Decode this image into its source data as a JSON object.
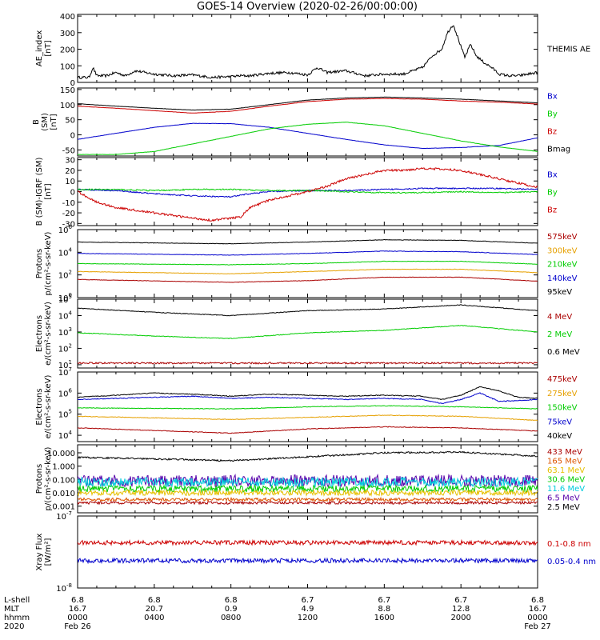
{
  "title": "GOES-14 Overview (2020-02-26/00:00:00)",
  "chart_data": [
    {
      "type": "line",
      "ylabel": [
        "AE_index",
        "[nT]"
      ],
      "yticks": [
        "400",
        "300",
        "200",
        "100",
        "0"
      ],
      "ylim": [
        0,
        410
      ],
      "legend": [
        {
          "name": "THEMIS AE",
          "color": "#000000"
        }
      ],
      "series": [
        {
          "name": "THEMIS AE",
          "color": "#000000",
          "noise": 8,
          "x": [
            0,
            0.6,
            0.8,
            1.0,
            1.5,
            2.0,
            2.5,
            3.0,
            4.0,
            5.0,
            6.0,
            7.0,
            8.0,
            8.5,
            9.0,
            10.0,
            11.0,
            11.7,
            12.0,
            12.5,
            13.0,
            14.0,
            15.0,
            16.0,
            17.0,
            18.0,
            18.5,
            19.0,
            19.3,
            19.6,
            19.9,
            20.2,
            20.5,
            20.8,
            21.2,
            21.6,
            22.0,
            22.5,
            23.0,
            24.0
          ],
          "y": [
            30,
            30,
            90,
            40,
            40,
            60,
            40,
            70,
            50,
            40,
            45,
            30,
            35,
            40,
            40,
            55,
            60,
            50,
            45,
            90,
            60,
            70,
            40,
            50,
            50,
            90,
            160,
            200,
            300,
            350,
            250,
            150,
            230,
            160,
            120,
            90,
            50,
            40,
            40,
            60
          ]
        }
      ]
    },
    {
      "type": "line",
      "ylabel": [
        "B",
        "(SM)",
        "[nT]"
      ],
      "yticks": [
        "150",
        "100",
        "50",
        "0",
        "-50"
      ],
      "ylim": [
        -70,
        155
      ],
      "legend": [
        {
          "name": "Bx",
          "color": "#0000cc"
        },
        {
          "name": "By",
          "color": "#00cc00"
        },
        {
          "name": "Bz",
          "color": "#cc0000"
        },
        {
          "name": "Bmag",
          "color": "#000000"
        }
      ],
      "series": [
        {
          "name": "Bx",
          "color": "#0000cc",
          "noise": 0.4,
          "x": [
            0,
            2,
            4,
            6,
            8,
            10,
            12,
            14,
            16,
            18,
            20,
            22,
            24
          ],
          "y": [
            -15,
            5,
            25,
            38,
            37,
            25,
            5,
            -15,
            -33,
            -45,
            -42,
            -35,
            -10
          ]
        },
        {
          "name": "By",
          "color": "#00cc00",
          "noise": 0.4,
          "x": [
            0,
            2,
            4,
            6,
            8,
            10,
            12,
            14,
            16,
            18,
            20,
            22,
            24
          ],
          "y": [
            -65,
            -65,
            -55,
            -30,
            -5,
            20,
            35,
            42,
            30,
            5,
            -20,
            -40,
            -55
          ]
        },
        {
          "name": "Bz",
          "color": "#cc0000",
          "noise": 0.4,
          "x": [
            0,
            2,
            4,
            6,
            8,
            10,
            12,
            14,
            16,
            18,
            20,
            22,
            24
          ],
          "y": [
            95,
            88,
            80,
            72,
            78,
            95,
            110,
            118,
            120,
            118,
            112,
            108,
            102
          ]
        },
        {
          "name": "Bmag",
          "color": "#000000",
          "noise": 0.4,
          "x": [
            0,
            2,
            4,
            6,
            8,
            10,
            12,
            14,
            16,
            18,
            20,
            22,
            24
          ],
          "y": [
            103,
            95,
            88,
            82,
            85,
            100,
            115,
            122,
            125,
            122,
            118,
            112,
            106
          ]
        }
      ]
    },
    {
      "type": "line",
      "ylabel": [
        "B (SM)-IGRF (SM)",
        "[nT]"
      ],
      "yticks": [
        "30",
        "20",
        "10",
        "0",
        "-10",
        "-20",
        "-30"
      ],
      "ylim": [
        -32,
        32
      ],
      "legend": [
        {
          "name": "Bx",
          "color": "#0000cc"
        },
        {
          "name": "By",
          "color": "#00cc00"
        },
        {
          "name": "Bz",
          "color": "#cc0000"
        }
      ],
      "series": [
        {
          "name": "Bx",
          "color": "#0000cc",
          "noise": 0.6,
          "x": [
            0,
            2,
            4,
            6,
            8,
            9,
            10,
            12,
            14,
            16,
            18,
            20,
            22,
            24
          ],
          "y": [
            2,
            1,
            -2,
            -4,
            -5,
            -2,
            0,
            1,
            1,
            2,
            3,
            3,
            3,
            2
          ]
        },
        {
          "name": "By",
          "color": "#00cc00",
          "noise": 0.6,
          "x": [
            0,
            2,
            4,
            6,
            8,
            10,
            12,
            14,
            16,
            18,
            20,
            22,
            24
          ],
          "y": [
            2,
            2,
            1,
            2,
            2,
            1,
            1,
            0,
            -1,
            -1,
            0,
            -1,
            0
          ]
        },
        {
          "name": "Bz",
          "color": "#cc0000",
          "noise": 1.0,
          "x": [
            0,
            1,
            2,
            4,
            6,
            7,
            8.5,
            9,
            10,
            11,
            12,
            13,
            14,
            16,
            17,
            18,
            20,
            22,
            24
          ],
          "y": [
            0,
            -10,
            -15,
            -20,
            -25,
            -27,
            -24,
            -15,
            -8,
            -4,
            0,
            5,
            12,
            20,
            20,
            22,
            20,
            12,
            4
          ]
        }
      ]
    },
    {
      "type": "line",
      "scale": "log",
      "ylabel": [
        "Protons",
        "p/(cm²-s-sr-keV)"
      ],
      "yticks": [
        "10^6",
        "10^4",
        "10^2",
        "10^0"
      ],
      "ylim": [
        0,
        6
      ],
      "legend": [
        {
          "name": "575keV",
          "color": "#aa0000"
        },
        {
          "name": "300keV",
          "color": "#e6a000"
        },
        {
          "name": "210keV",
          "color": "#00cc00"
        },
        {
          "name": "140keV",
          "color": "#0000cc"
        },
        {
          "name": "95keV",
          "color": "#000000"
        }
      ],
      "series": [
        {
          "name": "95keV",
          "color": "#000000",
          "noise": 0.02,
          "x": [
            0,
            8,
            12,
            16,
            20,
            24
          ],
          "y": [
            4.9,
            4.75,
            4.9,
            5.1,
            5.05,
            4.8
          ]
        },
        {
          "name": "140keV",
          "color": "#0000cc",
          "noise": 0.02,
          "x": [
            0,
            8,
            12,
            16,
            20,
            24
          ],
          "y": [
            3.9,
            3.75,
            3.9,
            4.1,
            4.05,
            3.8
          ]
        },
        {
          "name": "210keV",
          "color": "#00cc00",
          "noise": 0.02,
          "x": [
            0,
            8,
            12,
            16,
            20,
            24
          ],
          "y": [
            3.0,
            2.9,
            3.0,
            3.2,
            3.2,
            2.95
          ]
        },
        {
          "name": "300keV",
          "color": "#e6a000",
          "noise": 0.02,
          "x": [
            0,
            8,
            12,
            16,
            20,
            24
          ],
          "y": [
            2.3,
            2.1,
            2.3,
            2.5,
            2.5,
            2.2
          ]
        },
        {
          "name": "575keV",
          "color": "#aa0000",
          "noise": 0.02,
          "x": [
            0,
            8,
            12,
            16,
            20,
            24
          ],
          "y": [
            1.6,
            1.35,
            1.5,
            1.8,
            1.8,
            1.45
          ]
        }
      ]
    },
    {
      "type": "line",
      "scale": "log",
      "ylabel": [
        "Electrons",
        "e/(cm²-s-sr-keV)"
      ],
      "yticks": [
        "10^5",
        "10^4",
        "10^3",
        "10^2",
        "10^1"
      ],
      "ylim": [
        0.8,
        5
      ],
      "legend": [
        {
          "name": "4 MeV",
          "color": "#aa0000"
        },
        {
          "name": "2 MeV",
          "color": "#00cc00"
        },
        {
          "name": "0.6 MeV",
          "color": "#000000"
        }
      ],
      "series": [
        {
          "name": "0.6 MeV",
          "color": "#000000",
          "noise": 0.02,
          "x": [
            0,
            4,
            8,
            12,
            16,
            20,
            24
          ],
          "y": [
            4.45,
            4.2,
            4.0,
            4.3,
            4.4,
            4.65,
            4.3
          ]
        },
        {
          "name": "2 MeV",
          "color": "#00cc00",
          "noise": 0.02,
          "x": [
            0,
            4,
            8,
            12,
            16,
            20,
            24
          ],
          "y": [
            2.95,
            2.75,
            2.6,
            2.95,
            3.1,
            3.4,
            3.0
          ]
        },
        {
          "name": "4 MeV",
          "color": "#aa0000",
          "noise": 0.05,
          "x": [
            0,
            24
          ],
          "y": [
            1.1,
            1.1
          ]
        }
      ]
    },
    {
      "type": "line",
      "scale": "log",
      "ylabel": [
        "Electrons",
        "e/(cm²-s-sr-keV)"
      ],
      "yticks": [
        "10^7",
        "10^6",
        "10^5",
        "10^4"
      ],
      "ylim": [
        3.7,
        7
      ],
      "legend": [
        {
          "name": "475keV",
          "color": "#aa0000"
        },
        {
          "name": "275keV",
          "color": "#e6a000"
        },
        {
          "name": "150keV",
          "color": "#00cc00"
        },
        {
          "name": "75keV",
          "color": "#0000cc"
        },
        {
          "name": "40keV",
          "color": "#000000"
        }
      ],
      "series": [
        {
          "name": "40keV",
          "color": "#000000",
          "noise": 0.02,
          "x": [
            0,
            2,
            4,
            6,
            8,
            10,
            12,
            14,
            16,
            18,
            19,
            20,
            21,
            22,
            23,
            24
          ],
          "y": [
            5.8,
            5.9,
            6.0,
            5.95,
            5.85,
            5.95,
            5.9,
            5.85,
            5.9,
            5.85,
            5.7,
            5.9,
            6.3,
            6.1,
            5.8,
            5.75
          ]
        },
        {
          "name": "75keV",
          "color": "#0000cc",
          "noise": 0.02,
          "x": [
            0,
            2,
            4,
            6,
            8,
            10,
            12,
            14,
            16,
            18,
            19,
            20,
            21,
            22,
            23,
            24
          ],
          "y": [
            5.7,
            5.75,
            5.8,
            5.85,
            5.75,
            5.8,
            5.75,
            5.7,
            5.75,
            5.7,
            5.5,
            5.7,
            6.0,
            5.6,
            5.65,
            5.7
          ]
        },
        {
          "name": "150keV",
          "color": "#00cc00",
          "noise": 0.015,
          "x": [
            0,
            8,
            12,
            16,
            20,
            24
          ],
          "y": [
            5.3,
            5.25,
            5.35,
            5.4,
            5.35,
            5.25
          ]
        },
        {
          "name": "275keV",
          "color": "#e6a000",
          "noise": 0.015,
          "x": [
            0,
            8,
            12,
            16,
            20,
            24
          ],
          "y": [
            4.9,
            4.75,
            4.85,
            4.95,
            4.9,
            4.7
          ]
        },
        {
          "name": "475keV",
          "color": "#aa0000",
          "noise": 0.015,
          "x": [
            0,
            8,
            12,
            16,
            20,
            24
          ],
          "y": [
            4.35,
            4.1,
            4.3,
            4.4,
            4.35,
            4.2
          ]
        }
      ]
    },
    {
      "type": "line",
      "scale": "log",
      "ylabel": [
        "Protons",
        "p/(cm²-s-sr-keV)"
      ],
      "yticks": [
        "10.000",
        "1.000",
        "0.100",
        "0.010",
        "0.001"
      ],
      "tickvals": [
        1,
        0,
        -1,
        -2,
        -3
      ],
      "ylim": [
        -3.5,
        1.6
      ],
      "legend": [
        {
          "name": "433 MeV",
          "color": "#aa0000"
        },
        {
          "name": "165 MeV",
          "color": "#dd5500"
        },
        {
          "name": "63.1 MeV",
          "color": "#e6c000"
        },
        {
          "name": "30.6 MeV",
          "color": "#00cc00"
        },
        {
          "name": "11.6 MeV",
          "color": "#00ccdd"
        },
        {
          "name": "6.5 MeV",
          "color": "#5500aa"
        },
        {
          "name": "2.5 MeV",
          "color": "#000000"
        }
      ],
      "series": [
        {
          "name": "2.5 MeV",
          "color": "#000000",
          "noise": 0.06,
          "x": [
            0,
            4,
            8,
            12,
            16,
            20,
            24
          ],
          "y": [
            0.65,
            0.55,
            0.4,
            0.7,
            1.0,
            1.05,
            0.75
          ]
        },
        {
          "name": "6.5 MeV",
          "color": "#5500aa",
          "noise": 0.45,
          "x": [
            0,
            24
          ],
          "y": [
            -1.1,
            -1.1
          ]
        },
        {
          "name": "11.6 MeV",
          "color": "#00ccdd",
          "noise": 0.35,
          "x": [
            0,
            24
          ],
          "y": [
            -1.2,
            -1.2
          ]
        },
        {
          "name": "30.6 MeV",
          "color": "#00cc00",
          "noise": 0.25,
          "x": [
            0,
            24
          ],
          "y": [
            -1.7,
            -1.7
          ]
        },
        {
          "name": "63.1 MeV",
          "color": "#e6c000",
          "noise": 0.2,
          "x": [
            0,
            24
          ],
          "y": [
            -2.0,
            -2.0
          ]
        },
        {
          "name": "165 MeV",
          "color": "#dd5500",
          "noise": 0.12,
          "x": [
            0,
            24
          ],
          "y": [
            -2.5,
            -2.5
          ]
        },
        {
          "name": "433 MeV",
          "color": "#aa0000",
          "noise": 0.1,
          "x": [
            0,
            24
          ],
          "y": [
            -2.75,
            -2.75
          ]
        }
      ]
    },
    {
      "type": "line",
      "scale": "log",
      "ylabel": [
        "Xray Flux",
        "[W/m²]"
      ],
      "yticks": [
        "10^-7",
        "10^-8"
      ],
      "tickvals": [
        -7,
        -8
      ],
      "ylim": [
        -8,
        -7
      ],
      "legend": [
        {
          "name": "0.1-0.8 nm",
          "color": "#cc0000"
        },
        {
          "name": "0.05-0.4 nm",
          "color": "#0000cc"
        }
      ],
      "series": [
        {
          "name": "0.1-0.8 nm",
          "color": "#cc0000",
          "noise": 0.03,
          "x": [
            0,
            24
          ],
          "y": [
            -7.37,
            -7.37
          ]
        },
        {
          "name": "0.05-0.4 nm",
          "color": "#0000cc",
          "noise": 0.03,
          "x": [
            0,
            24
          ],
          "y": [
            -7.62,
            -7.62
          ]
        }
      ]
    }
  ],
  "x_axis": {
    "row_labels": [
      "L-shell",
      "MLT",
      "hhmm",
      "2020"
    ],
    "columns": [
      {
        "hours": 0,
        "lines": [
          "6.8",
          "16.7",
          "0000",
          "Feb 26"
        ]
      },
      {
        "hours": 4,
        "lines": [
          "6.8",
          "20.7",
          "0400",
          ""
        ]
      },
      {
        "hours": 8,
        "lines": [
          "6.8",
          "0.9",
          "0800",
          ""
        ]
      },
      {
        "hours": 12,
        "lines": [
          "6.7",
          "4.9",
          "1200",
          ""
        ]
      },
      {
        "hours": 16,
        "lines": [
          "6.7",
          "8.8",
          "1600",
          ""
        ]
      },
      {
        "hours": 20,
        "lines": [
          "6.7",
          "12.8",
          "2000",
          ""
        ]
      },
      {
        "hours": 24,
        "lines": [
          "6.8",
          "16.7",
          "0000",
          "Feb 27"
        ]
      }
    ]
  }
}
